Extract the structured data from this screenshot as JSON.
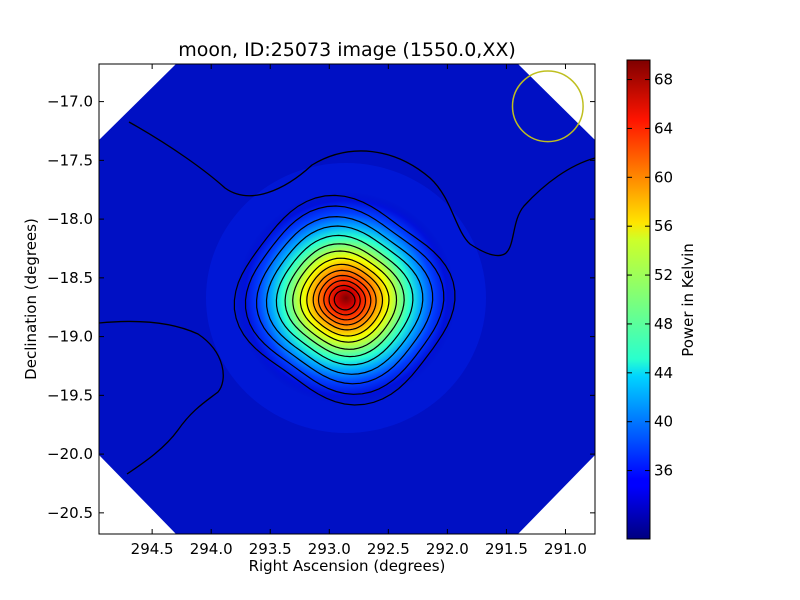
{
  "chart_data": {
    "type": "heatmap",
    "title": "moon, ID:25073 image (1550.0,XX)",
    "xlabel": "Right Ascension (degrees)",
    "ylabel": "Declination (degrees)",
    "xlim": [
      294.95,
      290.75
    ],
    "ylim": [
      -20.68,
      -16.68
    ],
    "xticks": [
      294.5,
      294.0,
      293.5,
      293.0,
      292.5,
      292.0,
      291.5,
      291.0
    ],
    "xtick_labels": [
      "294.5",
      "294.0",
      "293.5",
      "293.0",
      "292.5",
      "292.0",
      "291.5",
      "291.0"
    ],
    "yticks": [
      -17.0,
      -17.5,
      -18.0,
      -18.5,
      -19.0,
      -19.5,
      -20.0,
      -20.5
    ],
    "ytick_labels": [
      "−17.0",
      "−17.5",
      "−18.0",
      "−18.5",
      "−19.0",
      "−19.5",
      "−20.0",
      "−20.5"
    ],
    "source_peak": {
      "ra": 292.87,
      "dec": -18.69,
      "value": 69.5
    },
    "background_level": 33,
    "colormap": "jet",
    "colorbar": {
      "label": "Power in Kelvin",
      "vmin": 30.4,
      "vmax": 69.6,
      "ticks": [
        36,
        40,
        44,
        48,
        52,
        56,
        60,
        64,
        68
      ],
      "tick_labels": [
        "36",
        "40",
        "44",
        "48",
        "52",
        "56",
        "60",
        "64",
        "68"
      ]
    },
    "beam": {
      "ra": 291.15,
      "dec": -17.04,
      "radius_deg": 0.3,
      "color": "#bfbf1f"
    },
    "contour_color": "#000000",
    "grid": false
  }
}
